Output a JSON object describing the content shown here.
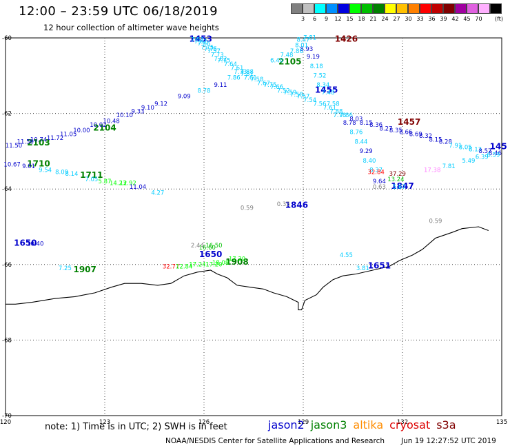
{
  "header": {
    "title": "12:00 – 23:59 UTC 06/18/2019",
    "subtitle": "12 hour collection of altimeter wave heights"
  },
  "scale": {
    "unit": "(ft)",
    "bins": [
      {
        "label": "",
        "color": "#808080"
      },
      {
        "label": "3",
        "color": "#c0c0c0"
      },
      {
        "label": "6",
        "color": "#00ffff"
      },
      {
        "label": "9",
        "color": "#0090ff"
      },
      {
        "label": "12",
        "color": "#0000e0"
      },
      {
        "label": "15",
        "color": "#00ff00"
      },
      {
        "label": "18",
        "color": "#00c000"
      },
      {
        "label": "21",
        "color": "#008000"
      },
      {
        "label": "24",
        "color": "#ffff00"
      },
      {
        "label": "27",
        "color": "#ffc000"
      },
      {
        "label": "30",
        "color": "#ff8000"
      },
      {
        "label": "33",
        "color": "#ff0000"
      },
      {
        "label": "36",
        "color": "#c00000"
      },
      {
        "label": "39",
        "color": "#800000"
      },
      {
        "label": "42",
        "color": "#a000a0"
      },
      {
        "label": "45",
        "color": "#e060e0"
      },
      {
        "label": "70",
        "color": "#ffb0ff"
      },
      {
        "label": "",
        "color": "#000000"
      }
    ]
  },
  "footer": {
    "note": "note: 1) Time is in UTC; 2) SWH is in feet",
    "credit": "NOAA/NESDIS Center for Satellite Applications and Research",
    "timestamp": "Jun 19 12:27:52 UTC 2019"
  },
  "legend": [
    {
      "name": "jason2",
      "color": "#0000cc"
    },
    {
      "name": "jason3",
      "color": "#008000"
    },
    {
      "name": "altika",
      "color": "#ff8c00"
    },
    {
      "name": "cryosat",
      "color": "#dd0000"
    },
    {
      "name": "s3a",
      "color": "#800000"
    }
  ],
  "chart_data": {
    "type": "scatter",
    "title": "12:00 – 23:59 UTC 06/18/2019",
    "subtitle": "12 hour collection of altimeter wave heights",
    "xlabel": "",
    "ylabel": "",
    "xlim": [
      120,
      135
    ],
    "ylim": [
      -70,
      -60
    ],
    "xticks": [
      {
        "v": 120,
        "t": "120"
      },
      {
        "v": 123,
        "t": "123"
      },
      {
        "v": 126,
        "t": "126"
      },
      {
        "v": 129,
        "t": "129"
      },
      {
        "v": 132,
        "t": "132"
      },
      {
        "v": 135,
        "t": "135"
      }
    ],
    "yticks": [
      {
        "v": -60,
        "t": "-60"
      },
      {
        "v": -62,
        "t": "-62"
      },
      {
        "v": -64,
        "t": "-64"
      },
      {
        "v": -66,
        "t": "-66"
      },
      {
        "v": -68,
        "t": "-68"
      },
      {
        "v": -70,
        "t": "-70"
      }
    ],
    "grid": true,
    "coastline": [
      [
        134.6,
        -65.1
      ],
      [
        134.3,
        -65.0
      ],
      [
        133.8,
        -65.05
      ],
      [
        133.5,
        -65.15
      ],
      [
        133.0,
        -65.3
      ],
      [
        132.6,
        -65.6
      ],
      [
        132.3,
        -65.75
      ],
      [
        131.9,
        -65.9
      ],
      [
        131.6,
        -66.05
      ],
      [
        131.1,
        -66.15
      ],
      [
        130.6,
        -66.25
      ],
      [
        130.2,
        -66.3
      ],
      [
        129.9,
        -66.4
      ],
      [
        129.6,
        -66.6
      ],
      [
        129.4,
        -66.8
      ],
      [
        129.05,
        -66.95
      ],
      [
        128.95,
        -67.2
      ],
      [
        128.85,
        -67.2
      ],
      [
        128.85,
        -67.0
      ],
      [
        128.5,
        -66.85
      ],
      [
        128.1,
        -66.75
      ],
      [
        127.8,
        -66.65
      ],
      [
        127.4,
        -66.6
      ],
      [
        127.0,
        -66.55
      ],
      [
        126.7,
        -66.35
      ],
      [
        126.4,
        -66.25
      ],
      [
        126.2,
        -66.15
      ],
      [
        125.8,
        -66.2
      ],
      [
        125.4,
        -66.3
      ],
      [
        125.0,
        -66.5
      ],
      [
        124.6,
        -66.55
      ],
      [
        124.1,
        -66.5
      ],
      [
        123.6,
        -66.5
      ],
      [
        123.2,
        -66.6
      ],
      [
        122.7,
        -66.75
      ],
      [
        122.1,
        -66.85
      ],
      [
        121.5,
        -66.9
      ],
      [
        120.8,
        -67.0
      ],
      [
        120.3,
        -67.05
      ],
      [
        120.0,
        -67.05
      ]
    ],
    "track_labels": [
      {
        "text": "1453",
        "x": 125.9,
        "y": -60.1,
        "color": "#0000cc"
      },
      {
        "text": "1426",
        "x": 130.3,
        "y": -60.1,
        "color": "#800000"
      },
      {
        "text": "2105",
        "x": 128.6,
        "y": -60.7,
        "color": "#008000"
      },
      {
        "text": "1455",
        "x": 129.7,
        "y": -61.45,
        "color": "#0000cc"
      },
      {
        "text": "2104",
        "x": 123.0,
        "y": -62.45,
        "color": "#008000"
      },
      {
        "text": "2103",
        "x": 121.0,
        "y": -62.85,
        "color": "#008000"
      },
      {
        "text": "1457",
        "x": 132.2,
        "y": -62.3,
        "color": "#800000"
      },
      {
        "text": "145",
        "x": 134.9,
        "y": -62.95,
        "color": "#0000cc"
      },
      {
        "text": "1710",
        "x": 121.0,
        "y": -63.4,
        "color": "#008000"
      },
      {
        "text": "1711",
        "x": 122.6,
        "y": -63.7,
        "color": "#008000"
      },
      {
        "text": "1846",
        "x": 128.8,
        "y": -64.5,
        "color": "#0000cc"
      },
      {
        "text": "1847",
        "x": 132.0,
        "y": -64.0,
        "color": "#0000cc"
      },
      {
        "text": "1650",
        "x": 120.6,
        "y": -65.5,
        "color": "#0000cc"
      },
      {
        "text": "1650",
        "x": 126.2,
        "y": -65.8,
        "color": "#0000cc"
      },
      {
        "text": "1907",
        "x": 122.4,
        "y": -66.2,
        "color": "#008000"
      },
      {
        "text": "1908",
        "x": 127.0,
        "y": -66.0,
        "color": "#008000"
      },
      {
        "text": "1651",
        "x": 131.3,
        "y": -66.1,
        "color": "#0000cc"
      }
    ],
    "points": [
      {
        "x": 125.8,
        "y": -60.1,
        "swh": 7.53,
        "color": "#00ccff"
      },
      {
        "x": 125.9,
        "y": -60.15,
        "swh": 7.62,
        "color": "#00ccff"
      },
      {
        "x": 126.0,
        "y": -60.2,
        "swh": 7.66,
        "color": "#00ccff"
      },
      {
        "x": 126.1,
        "y": -60.3,
        "swh": 7.75,
        "color": "#00ccff"
      },
      {
        "x": 126.2,
        "y": -60.35,
        "swh": 7.75,
        "color": "#00ccff"
      },
      {
        "x": 126.3,
        "y": -60.4,
        "swh": 7.57,
        "color": "#00ccff"
      },
      {
        "x": 126.4,
        "y": -60.5,
        "swh": 7.73,
        "color": "#00ccff"
      },
      {
        "x": 126.5,
        "y": -60.6,
        "swh": 7.82,
        "color": "#00ccff"
      },
      {
        "x": 126.6,
        "y": -60.65,
        "swh": 7.75,
        "color": "#00ccff"
      },
      {
        "x": 126.8,
        "y": -60.75,
        "swh": 7.64,
        "color": "#00ccff"
      },
      {
        "x": 127.0,
        "y": -60.85,
        "swh": 7.61,
        "color": "#00ccff"
      },
      {
        "x": 127.1,
        "y": -60.95,
        "swh": 7.73,
        "color": "#00ccff"
      },
      {
        "x": 127.3,
        "y": -61.0,
        "swh": 7.81,
        "color": "#00ccff"
      },
      {
        "x": 127.4,
        "y": -61.1,
        "swh": 7.61,
        "color": "#00ccff"
      },
      {
        "x": 127.6,
        "y": -61.15,
        "swh": 7.58,
        "color": "#00ccff"
      },
      {
        "x": 127.8,
        "y": -61.25,
        "swh": 7.67,
        "color": "#00ccff"
      },
      {
        "x": 128.0,
        "y": -61.3,
        "swh": 7.75,
        "color": "#00ccff"
      },
      {
        "x": 128.2,
        "y": -61.35,
        "swh": 7.66,
        "color": "#00ccff"
      },
      {
        "x": 128.4,
        "y": -61.45,
        "swh": 7.52,
        "color": "#00ccff"
      },
      {
        "x": 128.6,
        "y": -61.5,
        "swh": 7.59,
        "color": "#00ccff"
      },
      {
        "x": 128.8,
        "y": -61.55,
        "swh": 7.58,
        "color": "#00ccff"
      },
      {
        "x": 129.0,
        "y": -61.6,
        "swh": 7.57,
        "color": "#00ccff"
      },
      {
        "x": 129.2,
        "y": -61.7,
        "swh": 7.54,
        "color": "#00ccff"
      },
      {
        "x": 129.5,
        "y": -61.8,
        "swh": 7.56,
        "color": "#00ccff"
      },
      {
        "x": 129.8,
        "y": -61.9,
        "swh": 7.61,
        "color": "#00ccff"
      },
      {
        "x": 130.0,
        "y": -62.0,
        "swh": 7.88,
        "color": "#00ccff"
      },
      {
        "x": 130.3,
        "y": -62.1,
        "swh": 7.86,
        "color": "#00ccff"
      },
      {
        "x": 130.6,
        "y": -62.2,
        "swh": 8.03,
        "color": "#0000cc"
      },
      {
        "x": 130.9,
        "y": -62.3,
        "swh": 8.15,
        "color": "#0000cc"
      },
      {
        "x": 131.2,
        "y": -62.35,
        "swh": 8.36,
        "color": "#0000cc"
      },
      {
        "x": 131.5,
        "y": -62.45,
        "swh": 8.27,
        "color": "#0000cc"
      },
      {
        "x": 131.8,
        "y": -62.5,
        "swh": 8.35,
        "color": "#0000cc"
      },
      {
        "x": 132.1,
        "y": -62.55,
        "swh": 8.66,
        "color": "#0000cc"
      },
      {
        "x": 132.4,
        "y": -62.6,
        "swh": 8.69,
        "color": "#0000cc"
      },
      {
        "x": 132.7,
        "y": -62.65,
        "swh": 8.32,
        "color": "#0000cc"
      },
      {
        "x": 133.0,
        "y": -62.75,
        "swh": 8.15,
        "color": "#0000cc"
      },
      {
        "x": 133.3,
        "y": -62.8,
        "swh": 8.28,
        "color": "#0000cc"
      },
      {
        "x": 133.6,
        "y": -62.9,
        "swh": 7.91,
        "color": "#00ccff"
      },
      {
        "x": 133.9,
        "y": -62.95,
        "swh": 8.05,
        "color": "#00ccff"
      },
      {
        "x": 134.2,
        "y": -63.0,
        "swh": 8.13,
        "color": "#00ccff"
      },
      {
        "x": 134.5,
        "y": -63.05,
        "swh": 8.57,
        "color": "#0000cc"
      },
      {
        "x": 134.8,
        "y": -63.1,
        "swh": 8.46,
        "color": "#0000cc"
      },
      {
        "x": 129.0,
        "y": -60.1,
        "swh": 8.47,
        "color": "#00ccff"
      },
      {
        "x": 129.2,
        "y": -60.05,
        "swh": 7.81,
        "color": "#00ccff"
      },
      {
        "x": 129.1,
        "y": -60.35,
        "swh": 8.93,
        "color": "#0000cc"
      },
      {
        "x": 128.95,
        "y": -60.25,
        "swh": 8.01,
        "color": "#00ccff"
      },
      {
        "x": 128.8,
        "y": -60.4,
        "swh": 7.86,
        "color": "#00ccff"
      },
      {
        "x": 128.5,
        "y": -60.5,
        "swh": 7.48,
        "color": "#00ccff"
      },
      {
        "x": 128.2,
        "y": -60.65,
        "swh": 6.4,
        "color": "#00ccff"
      },
      {
        "x": 129.3,
        "y": -60.55,
        "swh": 9.19,
        "color": "#0000cc"
      },
      {
        "x": 129.4,
        "y": -60.8,
        "swh": 8.18,
        "color": "#00ccff"
      },
      {
        "x": 129.5,
        "y": -61.05,
        "swh": 7.52,
        "color": "#00ccff"
      },
      {
        "x": 129.6,
        "y": -61.3,
        "swh": 8.34,
        "color": "#00ccff"
      },
      {
        "x": 129.75,
        "y": -61.5,
        "swh": 7.48,
        "color": "#00ccff"
      },
      {
        "x": 129.9,
        "y": -61.8,
        "swh": 7.58,
        "color": "#00ccff"
      },
      {
        "x": 130.1,
        "y": -62.1,
        "swh": 7.78,
        "color": "#00ccff"
      },
      {
        "x": 130.4,
        "y": -62.3,
        "swh": 8.78,
        "color": "#0000cc"
      },
      {
        "x": 130.6,
        "y": -62.55,
        "swh": 8.76,
        "color": "#00ccff"
      },
      {
        "x": 130.75,
        "y": -62.8,
        "swh": 8.44,
        "color": "#00ccff"
      },
      {
        "x": 130.9,
        "y": -63.05,
        "swh": 9.29,
        "color": "#0000cc"
      },
      {
        "x": 131.0,
        "y": -63.3,
        "swh": 8.4,
        "color": "#00ccff"
      },
      {
        "x": 131.2,
        "y": -63.55,
        "swh": 8.37,
        "color": "#00ccff"
      },
      {
        "x": 131.3,
        "y": -63.85,
        "swh": 9.64,
        "color": "#0000cc"
      },
      {
        "x": 127.3,
        "y": -60.95,
        "swh": 7.88,
        "color": "#00ccff"
      },
      {
        "x": 126.9,
        "y": -61.1,
        "swh": 7.86,
        "color": "#00ccff"
      },
      {
        "x": 126.5,
        "y": -61.3,
        "swh": 9.11,
        "color": "#0000cc"
      },
      {
        "x": 126.0,
        "y": -61.45,
        "swh": 8.78,
        "color": "#00ccff"
      },
      {
        "x": 125.4,
        "y": -61.6,
        "swh": 9.09,
        "color": "#0000cc"
      },
      {
        "x": 124.7,
        "y": -61.8,
        "swh": 9.12,
        "color": "#0000cc"
      },
      {
        "x": 124.3,
        "y": -61.9,
        "swh": 9.1,
        "color": "#0000cc"
      },
      {
        "x": 124.0,
        "y": -62.0,
        "swh": 9.33,
        "color": "#0000cc"
      },
      {
        "x": 123.6,
        "y": -62.1,
        "swh": 10.1,
        "color": "#0000cc"
      },
      {
        "x": 123.2,
        "y": -62.25,
        "swh": 10.48,
        "color": "#0000cc"
      },
      {
        "x": 122.8,
        "y": -62.35,
        "swh": 10.02,
        "color": "#0000cc"
      },
      {
        "x": 122.3,
        "y": -62.5,
        "swh": 10.0,
        "color": "#0000cc"
      },
      {
        "x": 121.9,
        "y": -62.6,
        "swh": 11.05,
        "color": "#0000cc"
      },
      {
        "x": 121.5,
        "y": -62.7,
        "swh": 11.72,
        "color": "#0000cc"
      },
      {
        "x": 121.0,
        "y": -62.75,
        "swh": 10.74,
        "color": "#0000cc"
      },
      {
        "x": 120.6,
        "y": -62.8,
        "swh": 11.5,
        "color": "#0000cc"
      },
      {
        "x": 120.25,
        "y": -62.9,
        "swh": 11.5,
        "color": "#0000cc"
      },
      {
        "x": 120.2,
        "y": -63.4,
        "swh": 10.67,
        "color": "#0000cc"
      },
      {
        "x": 120.7,
        "y": -63.45,
        "swh": 9.01,
        "color": "#0000cc"
      },
      {
        "x": 121.2,
        "y": -63.55,
        "swh": 9.54,
        "color": "#00ccff"
      },
      {
        "x": 121.7,
        "y": -63.6,
        "swh": 8.09,
        "color": "#00ccff"
      },
      {
        "x": 122.0,
        "y": -63.65,
        "swh": 8.14,
        "color": "#00ccff"
      },
      {
        "x": 122.6,
        "y": -63.8,
        "swh": 7.05,
        "color": "#00ccff"
      },
      {
        "x": 123.0,
        "y": -63.85,
        "swh": 5.87,
        "color": "#00ff00"
      },
      {
        "x": 123.4,
        "y": -63.9,
        "swh": 14.23,
        "color": "#00ff00"
      },
      {
        "x": 123.7,
        "y": -63.9,
        "swh": 12.92,
        "color": "#00ff00"
      },
      {
        "x": 124.0,
        "y": -64.0,
        "swh": 11.04,
        "color": "#0000cc"
      },
      {
        "x": 124.6,
        "y": -64.15,
        "swh": 4.27,
        "color": "#00ccff"
      },
      {
        "x": 127.3,
        "y": -64.55,
        "swh": 0.59,
        "color": "#808080"
      },
      {
        "x": 128.4,
        "y": -64.45,
        "swh": 0.35,
        "color": "#808080"
      },
      {
        "x": 131.3,
        "y": -64.0,
        "swh": 0.63,
        "color": "#808080"
      },
      {
        "x": 131.2,
        "y": -63.6,
        "swh": 32.84,
        "color": "#ff0000"
      },
      {
        "x": 131.85,
        "y": -63.65,
        "swh": 37.29,
        "color": "#800000"
      },
      {
        "x": 131.8,
        "y": -63.8,
        "swh": 13.24,
        "color": "#00c000"
      },
      {
        "x": 131.9,
        "y": -64.0,
        "swh": 5.67,
        "color": "#00ccff"
      },
      {
        "x": 132.9,
        "y": -63.55,
        "swh": 17.38,
        "color": "#ff80ff"
      },
      {
        "x": 133.4,
        "y": -63.45,
        "swh": 7.81,
        "color": "#00ccff"
      },
      {
        "x": 134.0,
        "y": -63.3,
        "swh": 5.49,
        "color": "#00ccff"
      },
      {
        "x": 134.4,
        "y": -63.2,
        "swh": 6.39,
        "color": "#00ccff"
      },
      {
        "x": 134.75,
        "y": -63.15,
        "swh": 6.59,
        "color": "#00ccff"
      },
      {
        "x": 133.0,
        "y": -64.9,
        "swh": 0.59,
        "color": "#808080"
      },
      {
        "x": 120.9,
        "y": -65.5,
        "swh": 10.4,
        "color": "#0000cc"
      },
      {
        "x": 125.8,
        "y": -65.55,
        "swh": 2.44,
        "color": "#808080"
      },
      {
        "x": 126.1,
        "y": -65.6,
        "swh": 16.6,
        "color": "#00c000"
      },
      {
        "x": 126.3,
        "y": -65.55,
        "swh": 16.5,
        "color": "#00c000"
      },
      {
        "x": 126.5,
        "y": -66.0,
        "swh": 18.08,
        "color": "#00ff00"
      },
      {
        "x": 127.0,
        "y": -65.9,
        "swh": 17.2,
        "color": "#00ff00"
      },
      {
        "x": 125.0,
        "y": -66.1,
        "swh": 32.77,
        "color": "#ff0000"
      },
      {
        "x": 125.4,
        "y": -66.1,
        "swh": 12.84,
        "color": "#00ff00"
      },
      {
        "x": 125.8,
        "y": -66.05,
        "swh": 17.24,
        "color": "#00ff00"
      },
      {
        "x": 126.3,
        "y": -66.05,
        "swh": 17.2,
        "color": "#00ff00"
      },
      {
        "x": 121.8,
        "y": -66.15,
        "swh": 7.25,
        "color": "#00ccff"
      },
      {
        "x": 130.3,
        "y": -65.8,
        "swh": 4.55,
        "color": "#00ccff"
      },
      {
        "x": 130.8,
        "y": -66.15,
        "swh": 3.81,
        "color": "#00ccff"
      }
    ]
  }
}
